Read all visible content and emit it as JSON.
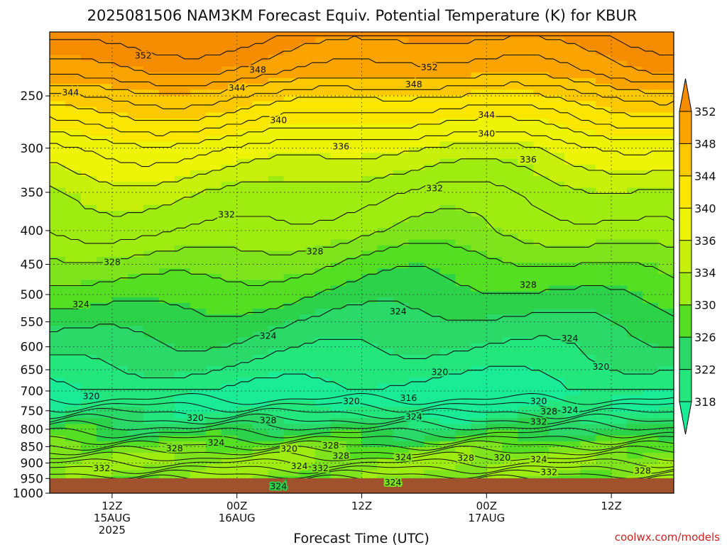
{
  "chart_data": {
    "type": "heatmap",
    "title": "2025081506 NAM3KM Forecast Equiv. Potential Temperature (K) for KBUR",
    "xlabel": "Forecast Time (UTC)",
    "ylabel": "",
    "credit": "coolwx.com/models",
    "yscale": "log",
    "yaxis_reversed": true,
    "ylim": [
      1000,
      200
    ],
    "y_ticks": [
      250,
      300,
      350,
      400,
      450,
      500,
      550,
      600,
      650,
      700,
      750,
      800,
      850,
      900,
      950,
      1000
    ],
    "x_range_hours": [
      0,
      60
    ],
    "x_ticks": [
      {
        "hour": 6,
        "lines": [
          "12Z",
          "15AUG",
          "2025"
        ]
      },
      {
        "hour": 18,
        "lines": [
          "00Z",
          "16AUG"
        ]
      },
      {
        "hour": 30,
        "lines": [
          "12Z"
        ]
      },
      {
        "hour": 42,
        "lines": [
          "00Z",
          "17AUG"
        ]
      },
      {
        "hour": 54,
        "lines": [
          "12Z"
        ]
      }
    ],
    "grid": "dotted",
    "colorbar": {
      "ticks": [
        352,
        348,
        344,
        340,
        336,
        334,
        330,
        326,
        322,
        318
      ],
      "extend": "both",
      "position": "right"
    },
    "color_bands": [
      {
        "range": [
          318,
          320
        ],
        "color": "#19eb96"
      },
      {
        "range": [
          320,
          322
        ],
        "color": "#23e67d"
      },
      {
        "range": [
          322,
          324
        ],
        "color": "#2ad968"
      },
      {
        "range": [
          324,
          326
        ],
        "color": "#2cd34a"
      },
      {
        "range": [
          326,
          328
        ],
        "color": "#55df22"
      },
      {
        "range": [
          328,
          330
        ],
        "color": "#7fe41c"
      },
      {
        "range": [
          330,
          334
        ],
        "color": "#9fec10"
      },
      {
        "range": [
          334,
          336
        ],
        "color": "#c8f00a"
      },
      {
        "range": [
          336,
          340
        ],
        "color": "#eef406"
      },
      {
        "range": [
          340,
          344
        ],
        "color": "#fbe600"
      },
      {
        "range": [
          344,
          348
        ],
        "color": "#fcc800"
      },
      {
        "range": [
          348,
          352
        ],
        "color": "#fba400"
      },
      {
        "range": [
          352,
          356
        ],
        "color": "#f68c00"
      }
    ],
    "theta_e_profile": [
      {
        "p": 200,
        "v": 354
      },
      {
        "p": 230,
        "v": 350
      },
      {
        "p": 250,
        "v": 345
      },
      {
        "p": 275,
        "v": 341
      },
      {
        "p": 300,
        "v": 337
      },
      {
        "p": 350,
        "v": 333
      },
      {
        "p": 400,
        "v": 331
      },
      {
        "p": 450,
        "v": 328
      },
      {
        "p": 500,
        "v": 326
      },
      {
        "p": 550,
        "v": 324
      },
      {
        "p": 620,
        "v": 322
      },
      {
        "p": 680,
        "v": 320
      },
      {
        "p": 720,
        "v": 319
      },
      {
        "p": 760,
        "v": 321
      },
      {
        "p": 800,
        "v": 324
      },
      {
        "p": 850,
        "v": 328
      },
      {
        "p": 900,
        "v": 331
      },
      {
        "p": 950,
        "v": 329
      },
      {
        "p": 990,
        "v": 326
      }
    ],
    "contour_labels": [
      {
        "text": "352",
        "hour": 9,
        "p": 217
      },
      {
        "text": "352",
        "hour": 36.5,
        "p": 226
      },
      {
        "text": "348",
        "hour": 20,
        "p": 228
      },
      {
        "text": "348",
        "hour": 35,
        "p": 240
      },
      {
        "text": "344",
        "hour": 2,
        "p": 247
      },
      {
        "text": "344",
        "hour": 18,
        "p": 243
      },
      {
        "text": "344",
        "hour": 42,
        "p": 267
      },
      {
        "text": "340",
        "hour": 22,
        "p": 272
      },
      {
        "text": "340",
        "hour": 42,
        "p": 285
      },
      {
        "text": "336",
        "hour": 28,
        "p": 298
      },
      {
        "text": "336",
        "hour": 46,
        "p": 312
      },
      {
        "text": "332",
        "hour": 37,
        "p": 345
      },
      {
        "text": "332",
        "hour": 17,
        "p": 378
      },
      {
        "text": "328",
        "hour": 25.5,
        "p": 430
      },
      {
        "text": "328",
        "hour": 6,
        "p": 446
      },
      {
        "text": "328",
        "hour": 46,
        "p": 483
      },
      {
        "text": "324",
        "hour": 3,
        "p": 517
      },
      {
        "text": "324",
        "hour": 33.5,
        "p": 530
      },
      {
        "text": "324",
        "hour": 21,
        "p": 577
      },
      {
        "text": "324",
        "hour": 50,
        "p": 582
      },
      {
        "text": "320",
        "hour": 37.5,
        "p": 655
      },
      {
        "text": "320",
        "hour": 53,
        "p": 643
      },
      {
        "text": "320",
        "hour": 4,
        "p": 712
      },
      {
        "text": "320",
        "hour": 29,
        "p": 725
      },
      {
        "text": "320",
        "hour": 47,
        "p": 725
      },
      {
        "text": "316",
        "hour": 34.5,
        "p": 717
      },
      {
        "text": "320",
        "hour": 14,
        "p": 768
      },
      {
        "text": "324",
        "hour": 35,
        "p": 765
      },
      {
        "text": "328",
        "hour": 48,
        "p": 751
      },
      {
        "text": "324",
        "hour": 50,
        "p": 748
      },
      {
        "text": "328",
        "hour": 21,
        "p": 775
      },
      {
        "text": "332",
        "hour": 47,
        "p": 779
      },
      {
        "text": "324",
        "hour": 16,
        "p": 838
      },
      {
        "text": "328",
        "hour": 12,
        "p": 855
      },
      {
        "text": "320",
        "hour": 23,
        "p": 856
      },
      {
        "text": "328",
        "hour": 27,
        "p": 846
      },
      {
        "text": "328",
        "hour": 28,
        "p": 877
      },
      {
        "text": "324",
        "hour": 34,
        "p": 881
      },
      {
        "text": "328",
        "hour": 40,
        "p": 884
      },
      {
        "text": "320",
        "hour": 43.5,
        "p": 882
      },
      {
        "text": "324",
        "hour": 47,
        "p": 888
      },
      {
        "text": "332",
        "hour": 5,
        "p": 916
      },
      {
        "text": "324",
        "hour": 24,
        "p": 909
      },
      {
        "text": "332",
        "hour": 26,
        "p": 916
      },
      {
        "text": "332",
        "hour": 48,
        "p": 928
      },
      {
        "text": "328",
        "hour": 57,
        "p": 924
      },
      {
        "text": "324",
        "hour": 33,
        "p": 962
      },
      {
        "text": "324",
        "hour": 22,
        "p": 975
      }
    ]
  }
}
